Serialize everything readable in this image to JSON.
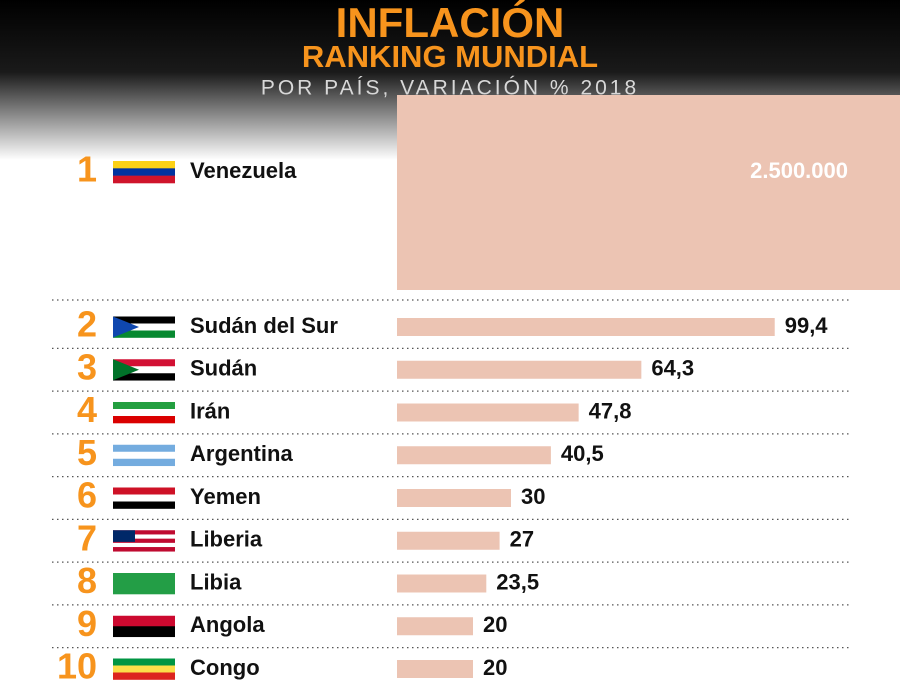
{
  "chart_data": {
    "type": "bar",
    "title": "INFLACIÓN",
    "subtitle": "RANKING MUNDIAL",
    "caption": "POR PAÍS, VARIACIÓN % 2018",
    "ranks": [
      1,
      2,
      3,
      4,
      5,
      6,
      7,
      8,
      9,
      10
    ],
    "categories": [
      "Venezuela",
      "Sudán del Sur",
      "Sudán",
      "Irán",
      "Argentina",
      "Yemen",
      "Liberia",
      "Libia",
      "Angola",
      "Congo"
    ],
    "values": [
      2500000,
      99.4,
      64.3,
      47.8,
      40.5,
      30,
      27,
      23.5,
      20,
      20
    ],
    "value_labels": [
      "2.500.000",
      "99,4",
      "64,3",
      "47,8",
      "40,5",
      "30",
      "27",
      "23,5",
      "20",
      "20"
    ],
    "color": "#ecc4b3"
  }
}
